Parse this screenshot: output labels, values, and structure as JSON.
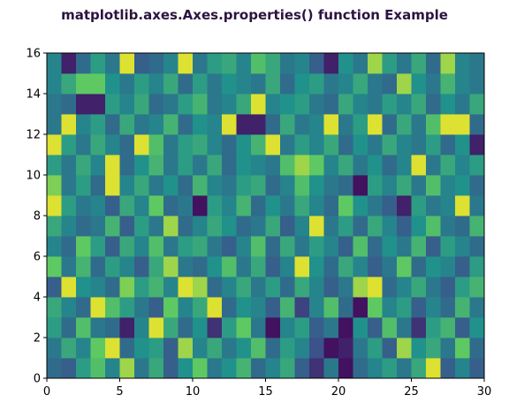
{
  "chart_data": {
    "type": "heatmap",
    "title": "matplotlib.axes.Axes.properties() function Example",
    "xlabel": "",
    "ylabel": "",
    "xlim": [
      0,
      30
    ],
    "ylim": [
      0,
      16
    ],
    "xticks": [
      0,
      5,
      10,
      15,
      20,
      25,
      30
    ],
    "yticks": [
      0,
      2,
      4,
      6,
      8,
      10,
      12,
      14,
      16
    ],
    "xtick_labels": [
      "0",
      "5",
      "10",
      "15",
      "20",
      "25",
      "30"
    ],
    "ytick_labels": [
      "0",
      "2",
      "4",
      "6",
      "8",
      "10",
      "12",
      "14",
      "16"
    ],
    "colormap": "viridis",
    "value_range": [
      0,
      1
    ],
    "grid": false,
    "ncols": 30,
    "nrows": 16,
    "values": [
      [
        0.35,
        0.3,
        0.55,
        0.7,
        0.45,
        0.85,
        0.4,
        0.6,
        0.3,
        0.5,
        0.75,
        0.4,
        0.5,
        0.65,
        0.35,
        0.45,
        0.6,
        0.3,
        0.15,
        0.4,
        0.05,
        0.35,
        0.45,
        0.55,
        0.4,
        0.6,
        0.95,
        0.3,
        0.45,
        0.3
      ],
      [
        0.4,
        0.6,
        0.45,
        0.75,
        0.95,
        0.35,
        0.5,
        0.55,
        0.3,
        0.85,
        0.45,
        0.6,
        0.4,
        0.5,
        0.7,
        0.35,
        0.55,
        0.45,
        0.25,
        0.05,
        0.1,
        0.4,
        0.55,
        0.3,
        0.85,
        0.5,
        0.6,
        0.4,
        0.75,
        0.35
      ],
      [
        0.55,
        0.35,
        0.7,
        0.4,
        0.35,
        0.1,
        0.45,
        0.95,
        0.6,
        0.35,
        0.5,
        0.15,
        0.55,
        0.75,
        0.4,
        0.05,
        0.45,
        0.55,
        0.3,
        0.4,
        0.05,
        0.5,
        0.3,
        0.7,
        0.4,
        0.15,
        0.55,
        0.65,
        0.3,
        0.5
      ],
      [
        0.6,
        0.45,
        0.35,
        0.95,
        0.7,
        0.55,
        0.4,
        0.3,
        0.75,
        0.45,
        0.6,
        0.95,
        0.35,
        0.5,
        0.45,
        0.3,
        0.65,
        0.2,
        0.45,
        0.7,
        0.35,
        0.05,
        0.75,
        0.45,
        0.55,
        0.3,
        0.45,
        0.35,
        0.65,
        0.4
      ],
      [
        0.3,
        0.95,
        0.5,
        0.45,
        0.35,
        0.8,
        0.55,
        0.65,
        0.45,
        0.95,
        0.85,
        0.35,
        0.45,
        0.6,
        0.4,
        0.55,
        0.35,
        0.6,
        0.45,
        0.3,
        0.4,
        0.85,
        0.95,
        0.35,
        0.45,
        0.6,
        0.4,
        0.3,
        0.55,
        0.65
      ],
      [
        0.75,
        0.4,
        0.65,
        0.35,
        0.55,
        0.45,
        0.3,
        0.6,
        0.85,
        0.4,
        0.35,
        0.5,
        0.7,
        0.4,
        0.6,
        0.3,
        0.45,
        0.95,
        0.5,
        0.35,
        0.6,
        0.45,
        0.3,
        0.4,
        0.75,
        0.35,
        0.5,
        0.45,
        0.3,
        0.55
      ],
      [
        0.45,
        0.35,
        0.75,
        0.55,
        0.3,
        0.6,
        0.45,
        0.7,
        0.4,
        0.55,
        0.6,
        0.4,
        0.3,
        0.45,
        0.7,
        0.35,
        0.6,
        0.4,
        0.55,
        0.45,
        0.3,
        0.7,
        0.35,
        0.5,
        0.4,
        0.65,
        0.3,
        0.55,
        0.45,
        0.35
      ],
      [
        0.6,
        0.45,
        0.35,
        0.4,
        0.65,
        0.3,
        0.55,
        0.4,
        0.85,
        0.35,
        0.45,
        0.6,
        0.5,
        0.35,
        0.4,
        0.6,
        0.3,
        0.45,
        0.95,
        0.4,
        0.55,
        0.35,
        0.6,
        0.45,
        0.3,
        0.5,
        0.7,
        0.4,
        0.35,
        0.65
      ],
      [
        0.95,
        0.55,
        0.4,
        0.45,
        0.3,
        0.6,
        0.45,
        0.75,
        0.35,
        0.4,
        0.05,
        0.55,
        0.45,
        0.65,
        0.35,
        0.5,
        0.4,
        0.6,
        0.45,
        0.35,
        0.75,
        0.5,
        0.4,
        0.3,
        0.1,
        0.55,
        0.4,
        0.45,
        0.95,
        0.4
      ],
      [
        0.8,
        0.4,
        0.55,
        0.35,
        0.95,
        0.45,
        0.6,
        0.4,
        0.5,
        0.35,
        0.65,
        0.45,
        0.4,
        0.55,
        0.6,
        0.35,
        0.45,
        0.7,
        0.5,
        0.4,
        0.35,
        0.05,
        0.55,
        0.45,
        0.6,
        0.4,
        0.7,
        0.45,
        0.5,
        0.35
      ],
      [
        0.55,
        0.4,
        0.6,
        0.45,
        0.95,
        0.35,
        0.5,
        0.65,
        0.4,
        0.55,
        0.4,
        0.6,
        0.35,
        0.5,
        0.45,
        0.4,
        0.7,
        0.85,
        0.75,
        0.45,
        0.6,
        0.4,
        0.5,
        0.35,
        0.45,
        0.95,
        0.4,
        0.6,
        0.45,
        0.55
      ],
      [
        0.95,
        0.55,
        0.4,
        0.6,
        0.45,
        0.35,
        0.95,
        0.7,
        0.4,
        0.55,
        0.6,
        0.45,
        0.35,
        0.5,
        0.65,
        0.95,
        0.4,
        0.55,
        0.45,
        0.6,
        0.35,
        0.5,
        0.4,
        0.6,
        0.45,
        0.4,
        0.55,
        0.35,
        0.5,
        0.1
      ],
      [
        0.4,
        0.95,
        0.45,
        0.55,
        0.35,
        0.6,
        0.4,
        0.45,
        0.65,
        0.35,
        0.5,
        0.45,
        0.95,
        0.1,
        0.1,
        0.35,
        0.6,
        0.4,
        0.45,
        0.95,
        0.4,
        0.55,
        0.95,
        0.35,
        0.6,
        0.4,
        0.7,
        0.95,
        0.95,
        0.35
      ],
      [
        0.4,
        0.35,
        0.1,
        0.1,
        0.55,
        0.45,
        0.6,
        0.35,
        0.4,
        0.55,
        0.65,
        0.4,
        0.45,
        0.6,
        0.95,
        0.45,
        0.5,
        0.55,
        0.4,
        0.35,
        0.6,
        0.45,
        0.4,
        0.55,
        0.45,
        0.6,
        0.35,
        0.5,
        0.4,
        0.6
      ],
      [
        0.45,
        0.6,
        0.75,
        0.75,
        0.5,
        0.4,
        0.55,
        0.45,
        0.6,
        0.35,
        0.55,
        0.4,
        0.5,
        0.45,
        0.4,
        0.6,
        0.35,
        0.5,
        0.55,
        0.4,
        0.45,
        0.6,
        0.4,
        0.35,
        0.85,
        0.5,
        0.4,
        0.65,
        0.45,
        0.4
      ],
      [
        0.45,
        0.1,
        0.35,
        0.55,
        0.4,
        0.95,
        0.3,
        0.35,
        0.45,
        0.95,
        0.4,
        0.55,
        0.6,
        0.45,
        0.7,
        0.6,
        0.4,
        0.45,
        0.3,
        0.1,
        0.5,
        0.4,
        0.85,
        0.55,
        0.4,
        0.6,
        0.35,
        0.85,
        0.45,
        0.4
      ]
    ]
  }
}
